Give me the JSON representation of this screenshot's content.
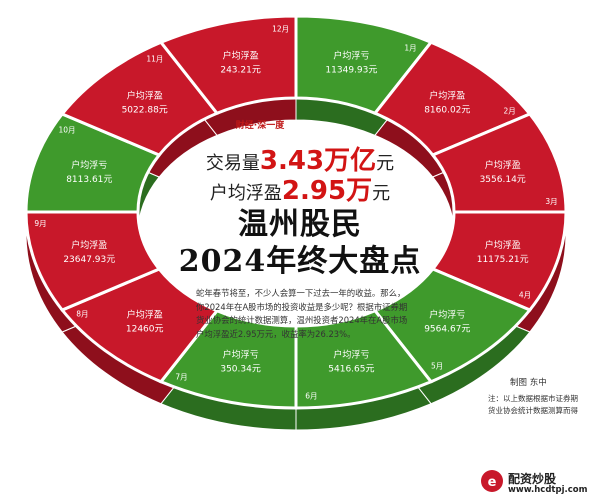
{
  "header": {
    "tag_left": "财经",
    "tag_dot": "·",
    "tag_right": "深一度",
    "volume_label": "交易量",
    "volume_value": "3.43万亿",
    "volume_unit": "元",
    "avg_label": "户均浮盈",
    "avg_value": "2.95万",
    "avg_unit": "元",
    "title_line1": "温州股民",
    "title_line2": "2024年终大盘点"
  },
  "intro": "蛇年春节将至，不少人会算一下过去一年的收益。那么，你2024年在A股市场的投资收益是多少呢？根据市证券期货业协会的统计数据测算，温州投资者2024年在A股市场户均浮盈近2.95万元，收益率为26.23%。",
  "credit": "制图 东中",
  "source_note": "注：以上数据根据市证券期货业协会统计数据测算而得",
  "brand": {
    "name": "配资炒股",
    "site": "www.hcdtpj.com"
  },
  "colors": {
    "profit": "#c8182a",
    "loss": "#3f9a2c",
    "profit_side": "#8e0f1c",
    "loss_side": "#2b6d1f"
  },
  "chart_data": {
    "type": "pie",
    "variant": "donut",
    "title": "温州股民2024年终大盘点",
    "categories": [
      "1月",
      "2月",
      "3月",
      "4月",
      "5月",
      "6月",
      "7月",
      "8月",
      "9月",
      "10月",
      "11月",
      "12月"
    ],
    "labels": [
      "户均浮亏",
      "户均浮盈",
      "户均浮盈",
      "户均浮盈",
      "户均浮亏",
      "户均浮亏",
      "户均浮亏",
      "户均浮盈",
      "户均浮盈",
      "户均浮亏",
      "户均浮盈",
      "户均浮盈"
    ],
    "value_text": [
      "11349.93元",
      "8160.02元",
      "3556.14元",
      "11175.21元",
      "9564.67元",
      "5416.65元",
      "350.34元",
      "12460元",
      "23647.93元",
      "8113.61元",
      "5022.88元",
      "243.21元"
    ],
    "values": [
      -11349.93,
      8160.02,
      3556.14,
      11175.21,
      -9564.67,
      -5416.65,
      -350.34,
      12460,
      23647.93,
      -8113.61,
      5022.88,
      243.21
    ],
    "unit": "元"
  }
}
